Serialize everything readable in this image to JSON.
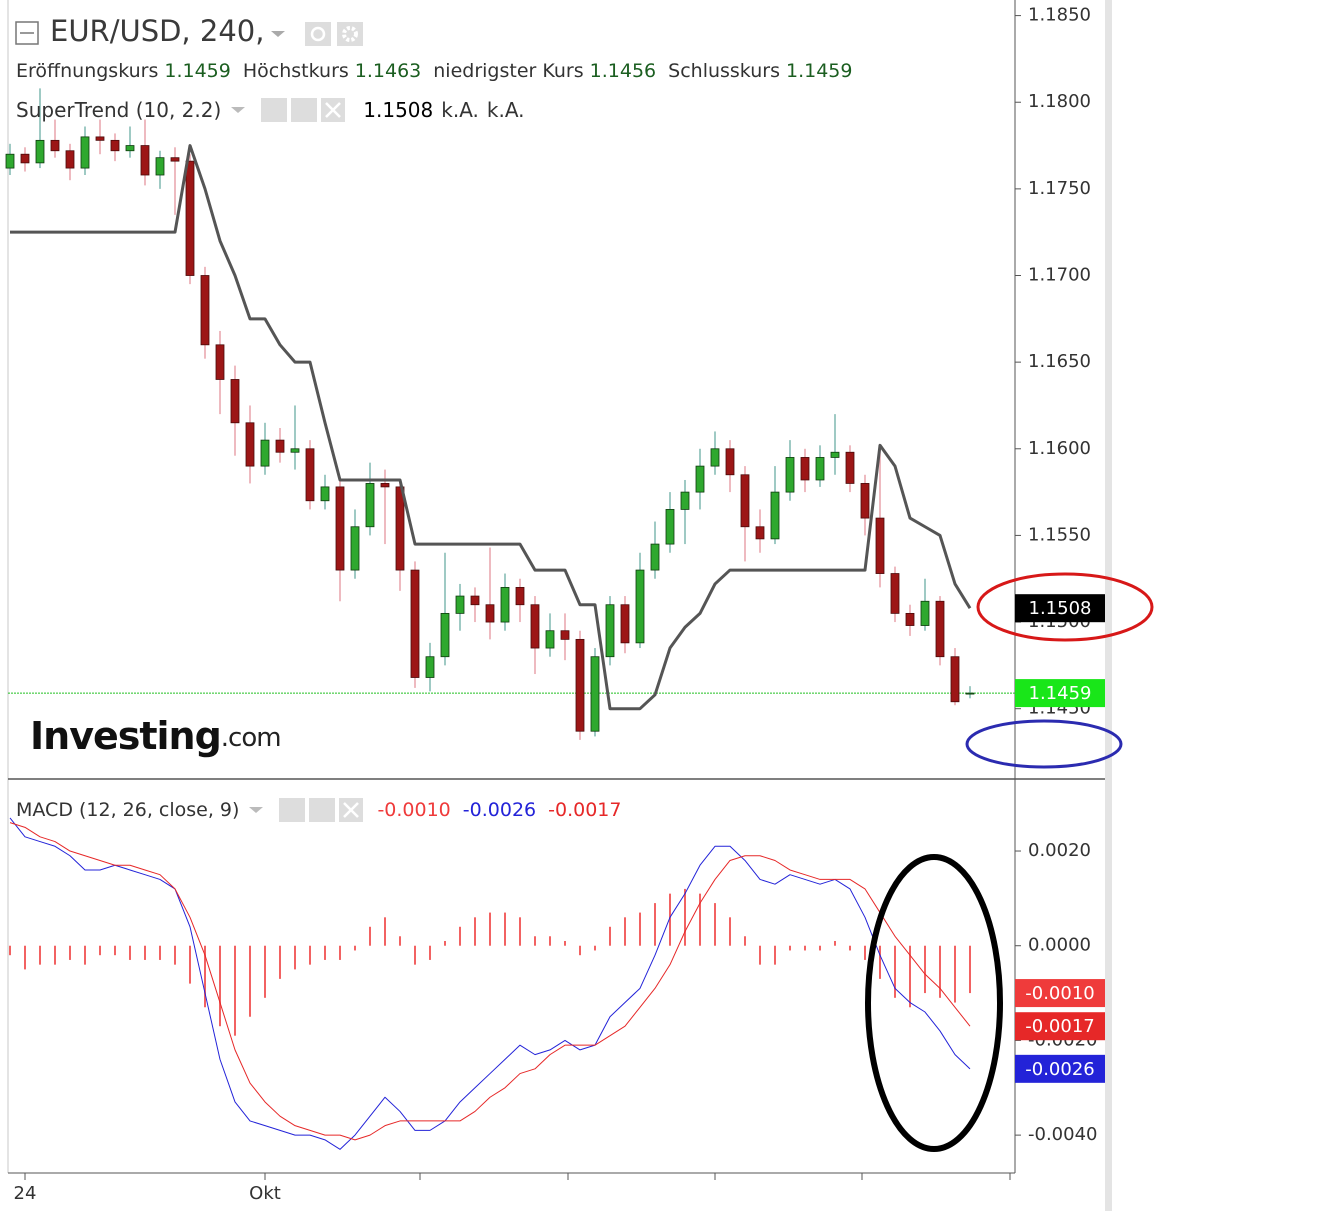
{
  "chart_data": [
    {
      "type": "candlestick",
      "title": "EUR/USD, 240,",
      "ohlc_labels": [
        "Eröffnungskurs",
        "Höchstkurs",
        "niedrigster Kurs",
        "Schlusskurs"
      ],
      "categories": [
        null,
        "24",
        null,
        null,
        null,
        null,
        null,
        null,
        null,
        null,
        null,
        null,
        null,
        null,
        null,
        null,
        null,
        "Okt",
        null,
        null,
        null,
        null,
        null,
        null,
        null,
        null,
        null,
        null,
        null,
        null,
        null,
        null,
        null,
        null,
        null,
        null,
        null,
        null,
        null,
        null,
        null,
        null,
        null,
        null,
        null,
        null,
        null,
        null,
        null,
        null,
        null,
        null,
        null,
        null,
        null,
        null,
        null,
        null,
        null,
        null,
        null,
        null,
        null,
        null,
        null
      ],
      "ohlc": [
        [
          1.1762,
          1.1776,
          1.1758,
          1.177
        ],
        [
          1.177,
          1.1774,
          1.176,
          1.1765
        ],
        [
          1.1765,
          1.1808,
          1.1762,
          1.1778
        ],
        [
          1.1778,
          1.179,
          1.1768,
          1.1772
        ],
        [
          1.1772,
          1.1776,
          1.1755,
          1.1762
        ],
        [
          1.1762,
          1.1786,
          1.1758,
          1.178
        ],
        [
          1.178,
          1.179,
          1.177,
          1.1778
        ],
        [
          1.1778,
          1.1782,
          1.1766,
          1.1772
        ],
        [
          1.1772,
          1.1786,
          1.1768,
          1.1775
        ],
        [
          1.1775,
          1.179,
          1.1752,
          1.1758
        ],
        [
          1.1758,
          1.1772,
          1.175,
          1.1768
        ],
        [
          1.1768,
          1.1774,
          1.1735,
          1.1766
        ],
        [
          1.1766,
          1.177,
          1.1695,
          1.17
        ],
        [
          1.17,
          1.1705,
          1.1652,
          1.166
        ],
        [
          1.166,
          1.1668,
          1.162,
          1.164
        ],
        [
          1.164,
          1.1648,
          1.1596,
          1.1615
        ],
        [
          1.1615,
          1.1625,
          1.158,
          1.159
        ],
        [
          1.159,
          1.1615,
          1.1585,
          1.1605
        ],
        [
          1.1605,
          1.1612,
          1.1592,
          1.1598
        ],
        [
          1.1598,
          1.1625,
          1.1588,
          1.16
        ],
        [
          1.16,
          1.1605,
          1.1565,
          1.157
        ],
        [
          1.157,
          1.1585,
          1.1565,
          1.1578
        ],
        [
          1.1578,
          1.1582,
          1.1512,
          1.153
        ],
        [
          1.153,
          1.1565,
          1.1525,
          1.1555
        ],
        [
          1.1555,
          1.1592,
          1.155,
          1.158
        ],
        [
          1.158,
          1.1588,
          1.1545,
          1.1578
        ],
        [
          1.1578,
          1.1582,
          1.1518,
          1.153
        ],
        [
          1.153,
          1.1535,
          1.1462,
          1.1468
        ],
        [
          1.1468,
          1.1488,
          1.146,
          1.148
        ],
        [
          1.148,
          1.154,
          1.1475,
          1.1505
        ],
        [
          1.1505,
          1.1522,
          1.1495,
          1.1515
        ],
        [
          1.1515,
          1.152,
          1.15,
          1.151
        ],
        [
          1.151,
          1.1543,
          1.149,
          1.15
        ],
        [
          1.15,
          1.1528,
          1.1495,
          1.152
        ],
        [
          1.152,
          1.1525,
          1.15,
          1.151
        ],
        [
          1.151,
          1.1515,
          1.147,
          1.1485
        ],
        [
          1.1485,
          1.1505,
          1.148,
          1.1495
        ],
        [
          1.1495,
          1.1505,
          1.1478,
          1.149
        ],
        [
          1.149,
          1.1495,
          1.1432,
          1.1437
        ],
        [
          1.1437,
          1.1485,
          1.1434,
          1.148
        ],
        [
          1.148,
          1.1515,
          1.1475,
          1.151
        ],
        [
          1.151,
          1.1515,
          1.1482,
          1.1488
        ],
        [
          1.1488,
          1.154,
          1.1485,
          1.153
        ],
        [
          1.153,
          1.1558,
          1.1525,
          1.1545
        ],
        [
          1.1545,
          1.1575,
          1.154,
          1.1565
        ],
        [
          1.1565,
          1.1582,
          1.1545,
          1.1575
        ],
        [
          1.1575,
          1.16,
          1.1565,
          1.159
        ],
        [
          1.159,
          1.161,
          1.1585,
          1.16
        ],
        [
          1.16,
          1.1605,
          1.1575,
          1.1585
        ],
        [
          1.1585,
          1.159,
          1.1535,
          1.1555
        ],
        [
          1.1555,
          1.1565,
          1.154,
          1.1548
        ],
        [
          1.1548,
          1.159,
          1.1545,
          1.1575
        ],
        [
          1.1575,
          1.1605,
          1.157,
          1.1595
        ],
        [
          1.1595,
          1.16,
          1.1575,
          1.1582
        ],
        [
          1.1582,
          1.1602,
          1.1578,
          1.1595
        ],
        [
          1.1595,
          1.162,
          1.1585,
          1.1598
        ],
        [
          1.1598,
          1.1602,
          1.1575,
          1.158
        ],
        [
          1.158,
          1.1585,
          1.155,
          1.156
        ],
        [
          1.156,
          1.16,
          1.152,
          1.1528
        ],
        [
          1.1528,
          1.1532,
          1.15,
          1.1505
        ],
        [
          1.1505,
          1.151,
          1.1492,
          1.1498
        ],
        [
          1.1498,
          1.1525,
          1.1495,
          1.1512
        ],
        [
          1.1512,
          1.1515,
          1.1475,
          1.148
        ],
        [
          1.148,
          1.1485,
          1.1452,
          1.1454
        ],
        [
          1.1459,
          1.1463,
          1.1456,
          1.1459
        ]
      ],
      "up_color": "#2fa82f",
      "down_color": "#9c1616",
      "close_line_color": "#22c022",
      "ylim": [
        1.141,
        1.1859
      ],
      "yticks": [
        {
          "value": 1.185,
          "label": "1.1850"
        },
        {
          "value": 1.18,
          "label": "1.1800"
        },
        {
          "value": 1.175,
          "label": "1.1750"
        },
        {
          "value": 1.17,
          "label": "1.1700"
        },
        {
          "value": 1.165,
          "label": "1.1650"
        },
        {
          "value": 1.16,
          "label": "1.1600"
        },
        {
          "value": 1.155,
          "label": "1.1550"
        },
        {
          "value": 1.15,
          "label": "1.1500"
        },
        {
          "value": 1.145,
          "label": "1.1450"
        }
      ],
      "indicator": {
        "title": "SuperTrend (10, 2.2)",
        "color": "#555555",
        "notes": [
          "k.A.",
          "k.A."
        ],
        "values": [
          1.1725,
          1.1725,
          1.1725,
          1.1725,
          1.1725,
          1.1725,
          1.1725,
          1.1725,
          1.1725,
          1.1725,
          1.1725,
          1.1725,
          1.1775,
          1.175,
          1.172,
          1.17,
          1.1675,
          1.1675,
          1.166,
          1.165,
          1.165,
          1.1615,
          1.1582,
          1.1582,
          1.1582,
          1.1582,
          1.1582,
          1.1545,
          1.1545,
          1.1545,
          1.1545,
          1.1545,
          1.1545,
          1.1545,
          1.1545,
          1.153,
          1.153,
          1.153,
          1.151,
          1.151,
          1.145,
          1.145,
          1.145,
          1.1458,
          1.1485,
          1.1497,
          1.1505,
          1.1522,
          1.153,
          1.153,
          1.153,
          1.153,
          1.153,
          1.153,
          1.153,
          1.153,
          1.153,
          1.153,
          1.1602,
          1.159,
          1.156,
          1.1555,
          1.155,
          1.1522,
          1.1508
        ]
      },
      "watermark": [
        "Investing",
        ".com"
      ]
    },
    {
      "type": "macd",
      "title": "MACD (12, 26, close, 9)",
      "ylim": [
        -0.0048,
        0.0035
      ],
      "yticks": [
        {
          "value": 0.002,
          "label": "0.0020"
        },
        {
          "value": 0,
          "label": "0.0000"
        },
        {
          "value": -0.002,
          "label": "-0.0020"
        },
        {
          "value": -0.004,
          "label": "-0.0040"
        }
      ],
      "series": [
        {
          "style": "histogram",
          "color": "#ef3b3b",
          "last_label": "-0.0010",
          "values": [
            -0.0002,
            -0.0005,
            -0.0004,
            -0.0004,
            -0.0003,
            -0.0004,
            -0.0002,
            -0.0002,
            -0.0003,
            -0.0003,
            -0.0003,
            -0.0004,
            -0.0008,
            -0.0013,
            -0.0017,
            -0.0019,
            -0.0015,
            -0.0011,
            -0.0007,
            -0.0005,
            -0.0004,
            -0.0003,
            -0.0003,
            -0.0001,
            0.0004,
            0.0006,
            0.0002,
            -0.0004,
            -0.0003,
            0.0001,
            0.0004,
            0.0006,
            0.0007,
            0.0007,
            0.0006,
            0.0002,
            0.0002,
            0.0001,
            -0.0002,
            -0.0001,
            0.0004,
            0.0006,
            0.0007,
            0.0009,
            0.0011,
            0.0012,
            0.0011,
            0.0009,
            0.0006,
            0.0002,
            -0.0004,
            -0.0004,
            -0.0001,
            -0.0001,
            -0.0001,
            0.0001,
            -0.0001,
            -0.0003,
            -0.0007,
            -0.0011,
            -0.0013,
            -0.001,
            -0.0011,
            -0.0012,
            -0.001
          ]
        },
        {
          "style": "line",
          "color": "#2323d8",
          "last_label": "-0.0026",
          "values": [
            0.0027,
            0.0023,
            0.0022,
            0.0021,
            0.0019,
            0.0016,
            0.0016,
            0.0017,
            0.0016,
            0.0015,
            0.0014,
            0.0012,
            0.0004,
            -0.001,
            -0.0024,
            -0.0033,
            -0.0037,
            -0.0038,
            -0.0039,
            -0.004,
            -0.004,
            -0.0041,
            -0.0043,
            -0.004,
            -0.0036,
            -0.0032,
            -0.0035,
            -0.0039,
            -0.0039,
            -0.0037,
            -0.0033,
            -0.003,
            -0.0027,
            -0.0024,
            -0.0021,
            -0.0023,
            -0.0022,
            -0.002,
            -0.0022,
            -0.0021,
            -0.0015,
            -0.0012,
            -0.0009,
            -0.0002,
            0.0006,
            0.0011,
            0.0017,
            0.0021,
            0.0021,
            0.0018,
            0.0014,
            0.0013,
            0.0015,
            0.0014,
            0.0013,
            0.0014,
            0.0012,
            0.0006,
            -0.0002,
            -0.0009,
            -0.0012,
            -0.0014,
            -0.0018,
            -0.0023,
            -0.0026
          ]
        },
        {
          "style": "line",
          "color": "#e62828",
          "last_label": "-0.0017",
          "values": [
            0.0026,
            0.0025,
            0.0023,
            0.0022,
            0.002,
            0.0019,
            0.0018,
            0.0017,
            0.0017,
            0.0016,
            0.0015,
            0.0012,
            0.0006,
            -0.0002,
            -0.0012,
            -0.0022,
            -0.0029,
            -0.0033,
            -0.0036,
            -0.0038,
            -0.0039,
            -0.004,
            -0.004,
            -0.0041,
            -0.004,
            -0.0038,
            -0.0037,
            -0.0037,
            -0.0037,
            -0.0037,
            -0.0037,
            -0.0035,
            -0.0032,
            -0.003,
            -0.0027,
            -0.0026,
            -0.0023,
            -0.0021,
            -0.0021,
            -0.0021,
            -0.0019,
            -0.0017,
            -0.0013,
            -0.0009,
            -0.0004,
            0.0003,
            0.0009,
            0.0014,
            0.0018,
            0.0019,
            0.0019,
            0.0018,
            0.0016,
            0.0015,
            0.0014,
            0.0014,
            0.0014,
            0.0012,
            0.0007,
            0.0002,
            -0.0002,
            -0.0006,
            -0.0009,
            -0.0013,
            -0.0017
          ]
        }
      ]
    }
  ]
}
